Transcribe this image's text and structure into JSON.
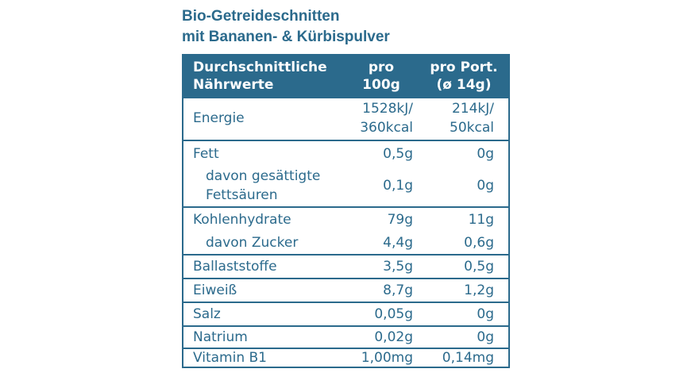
{
  "title_line1": "Bio-Getreideschnitten",
  "title_line2": "mit Bananen- & Kürbispulver",
  "header": {
    "col1_line1": "Durchschnittliche",
    "col1_line2": "Nährwerte",
    "col2_line1": "pro",
    "col2_line2": "100g",
    "col3_line1": "pro Port.",
    "col3_line2": "(ø 14g)"
  },
  "rows": {
    "energie": {
      "label": "Energie",
      "v1a": "1528kJ/",
      "v1b": "360kcal",
      "v2a": "214kJ/",
      "v2b": "50kcal"
    },
    "fett": {
      "label": "Fett",
      "v1": "0,5g",
      "v2": "0g"
    },
    "gesaettigte": {
      "label1": "davon gesättigte",
      "label2": "Fettsäuren",
      "v1": "0,1g",
      "v2": "0g"
    },
    "kohlenhydrate": {
      "label": "Kohlenhydrate",
      "v1": "79g",
      "v2": "11g"
    },
    "zucker": {
      "label": "davon Zucker",
      "v1": "4,4g",
      "v2": "0,6g"
    },
    "ballaststoffe": {
      "label": "Ballaststoffe",
      "v1": "3,5g",
      "v2": "0,5g"
    },
    "eiweiss": {
      "label": "Eiweiß",
      "v1": "8,7g",
      "v2": "1,2g"
    },
    "salz": {
      "label": "Salz",
      "v1": "0,05g",
      "v2": "0g"
    },
    "natrium": {
      "label": "Natrium",
      "v1": "0,02g",
      "v2": "0g"
    },
    "vitamin": {
      "label": "Vitamin B1",
      "v1": "1,00mg",
      "v2": "0,14mg"
    }
  },
  "colors": {
    "accent": "#2b6a8c",
    "background": "#ffffff"
  }
}
